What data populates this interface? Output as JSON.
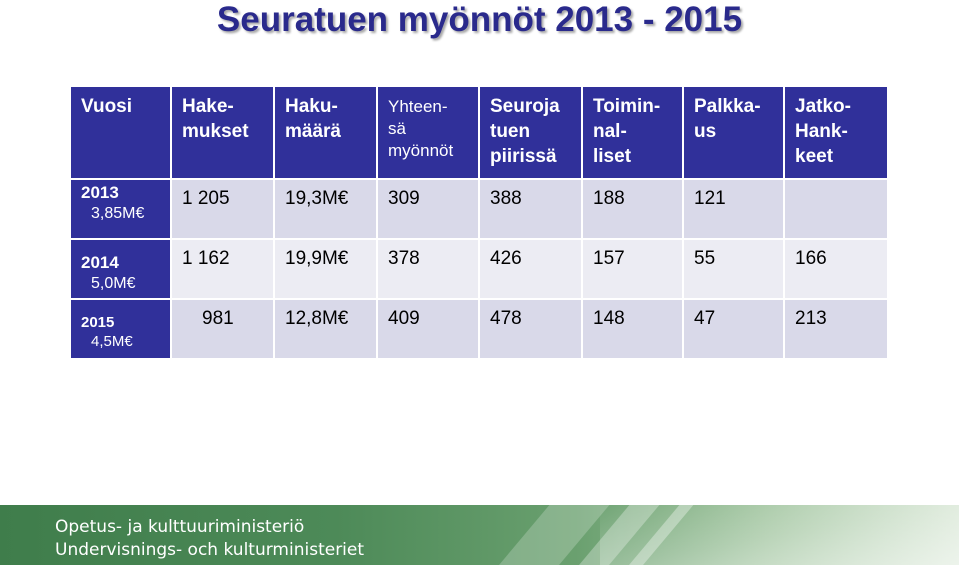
{
  "title": "Seuratuen myönnöt 2013 - 2015",
  "table": {
    "headers": [
      {
        "line1": "Vuosi",
        "line2": "",
        "line3": ""
      },
      {
        "line1": "Hake-",
        "line2": "mukset",
        "line3": ""
      },
      {
        "line1": "Haku-",
        "line2": "määrä",
        "line3": ""
      },
      {
        "line1": "Yhteen-",
        "line2": "sä",
        "line3": "myönnöt"
      },
      {
        "line1": "Seuroja",
        "line2": "tuen",
        "line3": "piirissä"
      },
      {
        "line1": "Toimin-",
        "line2": "nal-",
        "line3": "liset"
      },
      {
        "line1": "Palkka-",
        "line2": "us",
        "line3": ""
      },
      {
        "line1": "Jatko-",
        "line2": "Hank-",
        "line3": "keet"
      }
    ],
    "rows": [
      {
        "year": "2013",
        "amount": "3,85M€",
        "cells": [
          "1 205",
          "19,3M€",
          "309",
          "388",
          "188",
          "121",
          ""
        ]
      },
      {
        "year": "2014",
        "amount": "5,0M€",
        "cells": [
          "1 162",
          "19,9M€",
          "378",
          "426",
          "157",
          "55",
          "166"
        ]
      },
      {
        "year": "2015",
        "amount": "4,5M€",
        "cells": [
          "981",
          "12,8M€",
          "409",
          "478",
          "148",
          "47",
          "213"
        ]
      }
    ]
  },
  "footer": {
    "line1": "Opetus- ja kulttuuriministeriö",
    "line2": "Undervisnings- och kulturministeriet"
  },
  "colors": {
    "header_bg": "#30309a",
    "row_light": "#ececf3",
    "row_dark": "#d9d9e9",
    "title": "#2a2a8c",
    "footer_green": "#3f7d4b"
  }
}
